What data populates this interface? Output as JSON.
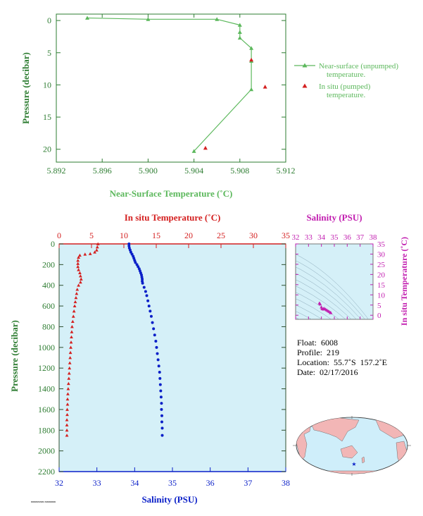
{
  "colors": {
    "green": "#5cb85c",
    "axis_green": "#2e7d32",
    "dark_green": "#2f4f2f",
    "red": "#d42020",
    "blue": "#0a1fc8",
    "magenta": "#c21fb0",
    "panel_bg": "#d5f0f8"
  },
  "chart_data": [
    {
      "type": "line",
      "xlabel": "Near-Surface Temperature (˚C)",
      "ylabel": "Pressure (decibar)",
      "xlim": [
        5.892,
        5.912
      ],
      "xticks": [
        "5.892",
        "5.896",
        "5.900",
        "5.904",
        "5.908",
        "5.912"
      ],
      "ylim": [
        22,
        -1
      ],
      "yticks": [
        "0",
        "5",
        "10",
        "15",
        "20"
      ],
      "series": [
        {
          "name": "Near-surface (unpumped) temperature.",
          "marker": "triangle",
          "color": "#5cb85c",
          "line": true,
          "points": [
            [
              5.8947,
              -0.4
            ],
            [
              5.9,
              -0.2
            ],
            [
              5.906,
              -0.2
            ],
            [
              5.908,
              0.7
            ],
            [
              5.908,
              1.8
            ],
            [
              5.908,
              2.7
            ],
            [
              5.909,
              4.3
            ],
            [
              5.909,
              6.3
            ],
            [
              5.909,
              10.7
            ],
            [
              5.904,
              20.3
            ]
          ]
        },
        {
          "name": "In situ (pumped) temperature.",
          "marker": "triangle",
          "color": "#d42020",
          "line": false,
          "points": [
            [
              5.909,
              6.1
            ],
            [
              5.9102,
              10.3
            ],
            [
              5.905,
              19.8
            ]
          ]
        }
      ],
      "legend": "right"
    },
    {
      "type": "scatter",
      "x_top_label": "In situ Temperature (˚C)",
      "x_top_range": [
        0,
        35
      ],
      "x_top_ticks": [
        "0",
        "5",
        "10",
        "15",
        "20",
        "25",
        "30",
        "35"
      ],
      "xlabel": "Salinity (PSU)",
      "xlim": [
        32,
        38
      ],
      "xticks": [
        "32",
        "33",
        "34",
        "35",
        "36",
        "37",
        "38"
      ],
      "ylabel": "Pressure (decibar)",
      "ylim": [
        2200,
        0
      ],
      "yticks": [
        "0",
        "200",
        "400",
        "600",
        "800",
        "1000",
        "1200",
        "1400",
        "1600",
        "1800",
        "2000",
        "2200"
      ],
      "temperature": {
        "marker": "triangle",
        "color": "#d42020",
        "points": [
          [
            6.0,
            0
          ],
          [
            5.9,
            30
          ],
          [
            5.8,
            60
          ],
          [
            5.5,
            80
          ],
          [
            4.8,
            95
          ],
          [
            4.0,
            100
          ],
          [
            3.2,
            110
          ],
          [
            3.0,
            130
          ],
          [
            2.9,
            160
          ],
          [
            2.9,
            190
          ],
          [
            2.9,
            220
          ],
          [
            3.0,
            250
          ],
          [
            3.2,
            280
          ],
          [
            3.3,
            310
          ],
          [
            3.4,
            340
          ],
          [
            3.3,
            370
          ],
          [
            3.0,
            400
          ],
          [
            2.8,
            440
          ],
          [
            2.7,
            480
          ],
          [
            2.6,
            520
          ],
          [
            2.5,
            560
          ],
          [
            2.4,
            600
          ],
          [
            2.3,
            650
          ],
          [
            2.2,
            700
          ],
          [
            2.1,
            750
          ],
          [
            2.0,
            800
          ],
          [
            1.95,
            850
          ],
          [
            1.9,
            900
          ],
          [
            1.85,
            950
          ],
          [
            1.8,
            1000
          ],
          [
            1.75,
            1050
          ],
          [
            1.7,
            1100
          ],
          [
            1.65,
            1150
          ],
          [
            1.6,
            1200
          ],
          [
            1.55,
            1250
          ],
          [
            1.5,
            1300
          ],
          [
            1.45,
            1350
          ],
          [
            1.4,
            1400
          ],
          [
            1.35,
            1450
          ],
          [
            1.3,
            1500
          ],
          [
            1.3,
            1550
          ],
          [
            1.25,
            1600
          ],
          [
            1.25,
            1650
          ],
          [
            1.2,
            1700
          ],
          [
            1.2,
            1750
          ],
          [
            1.2,
            1800
          ],
          [
            1.2,
            1850
          ]
        ]
      },
      "salinity": {
        "marker": "dot",
        "color": "#0a1fc8",
        "points": [
          [
            33.85,
            0
          ],
          [
            33.85,
            20
          ],
          [
            33.86,
            40
          ],
          [
            33.88,
            60
          ],
          [
            33.9,
            80
          ],
          [
            33.93,
            100
          ],
          [
            33.96,
            120
          ],
          [
            33.98,
            140
          ],
          [
            34.0,
            160
          ],
          [
            34.02,
            180
          ],
          [
            34.06,
            200
          ],
          [
            34.09,
            220
          ],
          [
            34.12,
            240
          ],
          [
            34.14,
            260
          ],
          [
            34.16,
            280
          ],
          [
            34.18,
            300
          ],
          [
            34.19,
            320
          ],
          [
            34.2,
            340
          ],
          [
            34.2,
            360
          ],
          [
            34.21,
            380
          ],
          [
            34.25,
            420
          ],
          [
            34.29,
            460
          ],
          [
            34.32,
            500
          ],
          [
            34.35,
            550
          ],
          [
            34.38,
            600
          ],
          [
            34.41,
            650
          ],
          [
            34.44,
            700
          ],
          [
            34.47,
            760
          ],
          [
            34.5,
            820
          ],
          [
            34.53,
            880
          ],
          [
            34.56,
            940
          ],
          [
            34.58,
            1000
          ],
          [
            34.6,
            1060
          ],
          [
            34.62,
            1120
          ],
          [
            34.64,
            1180
          ],
          [
            34.66,
            1240
          ],
          [
            34.67,
            1300
          ],
          [
            34.68,
            1360
          ],
          [
            34.69,
            1420
          ],
          [
            34.7,
            1480
          ],
          [
            34.71,
            1540
          ],
          [
            34.71,
            1600
          ],
          [
            34.72,
            1660
          ],
          [
            34.72,
            1720
          ],
          [
            34.73,
            1780
          ],
          [
            34.73,
            1850
          ]
        ]
      }
    },
    {
      "type": "scatter",
      "xlabel": "Salinity (PSU)",
      "xlim": [
        32,
        38
      ],
      "xticks": [
        "32",
        "33",
        "34",
        "35",
        "36",
        "37",
        "38"
      ],
      "ylabel": "In situ Temperature (˚C)",
      "ylim": [
        -2,
        35
      ],
      "yticks": [
        "0",
        "5",
        "10",
        "15",
        "20",
        "25",
        "30",
        "35"
      ],
      "points": [
        [
          33.85,
          6.0
        ],
        [
          33.9,
          5.5
        ],
        [
          34.0,
          4.0
        ],
        [
          34.05,
          3.2
        ],
        [
          34.15,
          3.0
        ],
        [
          34.2,
          3.4
        ],
        [
          34.3,
          3.0
        ],
        [
          34.4,
          2.6
        ],
        [
          34.5,
          2.2
        ],
        [
          34.6,
          1.8
        ],
        [
          34.7,
          1.3
        ],
        [
          34.73,
          1.2
        ]
      ]
    }
  ],
  "info": {
    "float": "Float:  6008",
    "profile": "Profile:  219",
    "location": "Location:  55.7˚S  157.2˚E",
    "date": "Date:  02/17/2016"
  },
  "footer": "mmmmmm mmmmm"
}
